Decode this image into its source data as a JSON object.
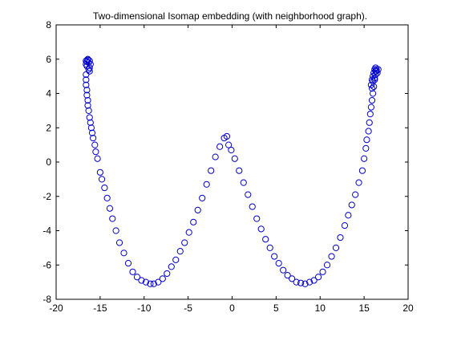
{
  "colors": {
    "background": "#ffffff",
    "axis": "#000000",
    "marker": "#0000cc"
  },
  "chart_data": {
    "type": "scatter",
    "title": "Two-dimensional Isomap embedding (with neighborhood graph).",
    "xlabel": "",
    "ylabel": "",
    "xlim": [
      -20,
      20
    ],
    "ylim": [
      -8,
      8
    ],
    "x_ticks": [
      -20,
      -15,
      -10,
      -5,
      0,
      5,
      10,
      15,
      20
    ],
    "y_ticks": [
      -8,
      -6,
      -4,
      -2,
      0,
      2,
      4,
      6,
      8
    ],
    "grid": false,
    "legend": "none",
    "marker": "open-circle",
    "series": [
      {
        "x": [
          -16.6,
          -16.4,
          -16.2,
          -16.1,
          -16.5,
          -16.3,
          -16.5,
          -16.6,
          -16.4,
          -16.2,
          -16.3,
          -16.2,
          -16.6,
          -16.6,
          -16.6,
          -16.5,
          -16.5,
          -16.4,
          -16.4,
          -16.3,
          -16.2,
          -16.1,
          -16.0,
          -15.9,
          -15.8,
          -15.6,
          -15.5,
          -15.3,
          -15.0,
          -14.8,
          -14.5,
          -14.2,
          -13.9,
          -13.6,
          -13.2,
          -12.8,
          -12.3,
          -11.8,
          -11.3,
          -10.8,
          -10.3,
          -9.8,
          -9.3,
          -8.9,
          -8.4,
          -7.9,
          -7.4,
          -6.9,
          -6.4,
          -5.9,
          -5.4,
          -4.9,
          -4.4,
          -3.9,
          -3.4,
          -2.9,
          -2.4,
          -1.9,
          -1.4,
          -0.9,
          -0.6,
          -0.4,
          -0.1,
          0.3,
          0.8,
          1.3,
          1.8,
          2.3,
          2.8,
          3.3,
          3.8,
          4.3,
          4.8,
          5.3,
          5.8,
          6.3,
          6.8,
          7.3,
          7.8,
          8.3,
          8.8,
          9.3,
          9.8,
          10.3,
          10.8,
          11.3,
          11.8,
          12.3,
          12.8,
          13.2,
          13.6,
          14.0,
          14.4,
          14.8,
          15.0,
          15.2,
          15.3,
          15.5,
          15.6,
          15.7,
          15.8,
          15.9,
          16.0,
          16.1,
          16.2,
          16.3,
          16.3,
          15.8,
          15.9,
          16.0,
          16.1,
          16.2,
          16.3,
          16.4,
          16.5,
          16.6,
          16.0,
          16.2,
          16.4,
          15.9
        ],
        "y": [
          5.9,
          6.0,
          5.9,
          5.7,
          5.6,
          5.8,
          5.85,
          5.7,
          5.95,
          5.5,
          5.4,
          5.3,
          5.1,
          4.8,
          4.5,
          4.2,
          3.9,
          3.6,
          3.3,
          3.0,
          2.6,
          2.3,
          2.0,
          1.7,
          1.4,
          1.0,
          0.6,
          0.2,
          -0.6,
          -1.0,
          -1.5,
          -2.1,
          -2.7,
          -3.3,
          -4.0,
          -4.7,
          -5.3,
          -5.9,
          -6.4,
          -6.7,
          -6.9,
          -7.0,
          -7.1,
          -7.1,
          -7.0,
          -6.8,
          -6.5,
          -6.1,
          -5.7,
          -5.2,
          -4.7,
          -4.1,
          -3.5,
          -2.8,
          -2.1,
          -1.3,
          -0.5,
          0.3,
          0.9,
          1.4,
          1.5,
          1.0,
          0.7,
          0.2,
          -0.5,
          -1.2,
          -1.9,
          -2.6,
          -3.3,
          -3.9,
          -4.5,
          -5.0,
          -5.5,
          -5.9,
          -6.3,
          -6.6,
          -6.8,
          -7.0,
          -7.05,
          -7.1,
          -7.0,
          -6.9,
          -6.7,
          -6.4,
          -6.0,
          -5.5,
          -5.0,
          -4.4,
          -3.7,
          -3.1,
          -2.5,
          -1.9,
          -1.2,
          -0.5,
          0.2,
          0.8,
          1.3,
          1.8,
          2.3,
          2.8,
          3.2,
          3.6,
          4.0,
          4.4,
          4.8,
          5.1,
          5.3,
          4.5,
          4.8,
          5.0,
          5.2,
          5.4,
          5.5,
          5.4,
          5.2,
          5.4,
          4.7,
          4.9,
          5.3,
          4.3
        ]
      }
    ]
  }
}
